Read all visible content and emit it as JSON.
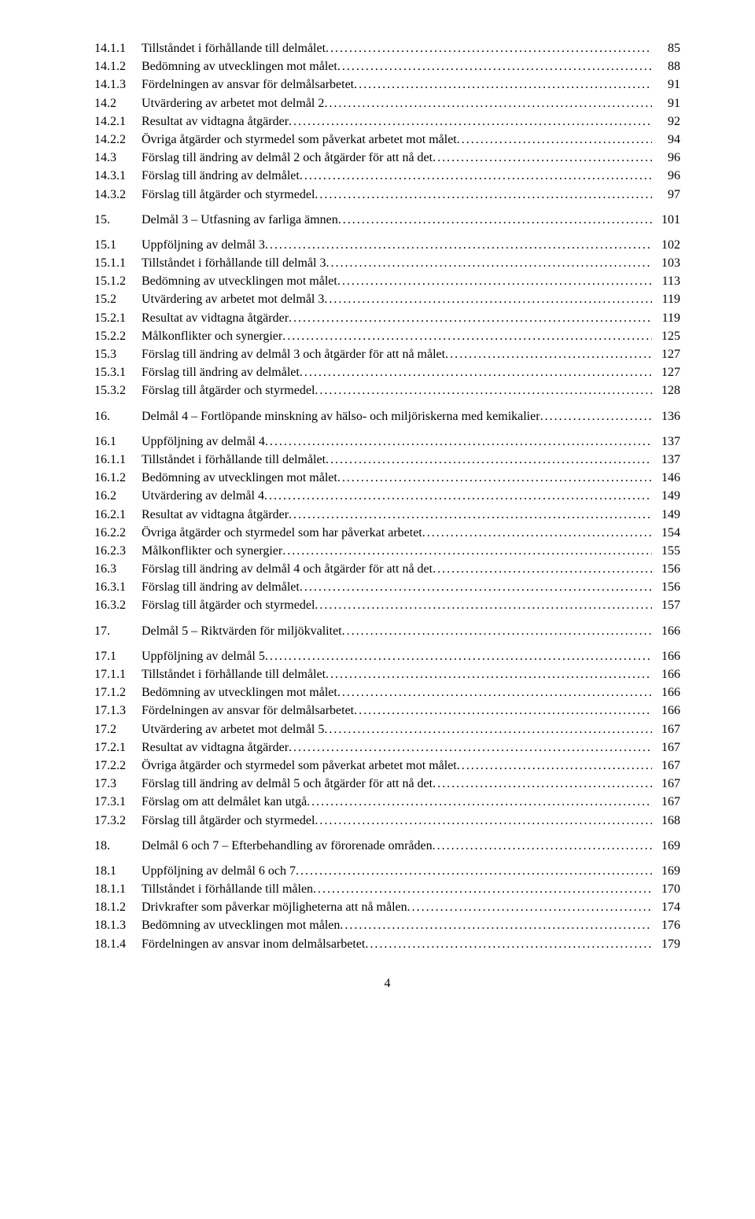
{
  "entries": [
    {
      "num": "14.1.1",
      "label": "Tillståndet i förhållande till delmålet",
      "page": "85",
      "indent": 0
    },
    {
      "num": "14.1.2",
      "label": "Bedömning av utvecklingen mot målet",
      "page": "88",
      "indent": 0
    },
    {
      "num": "14.1.3",
      "label": "Fördelningen av ansvar för delmålsarbetet",
      "page": "91",
      "indent": 0
    },
    {
      "num": "14.2",
      "label": "Utvärdering av arbetet mot delmål 2",
      "page": "91",
      "indent": 0
    },
    {
      "num": "14.2.1",
      "label": "Resultat av vidtagna åtgärder",
      "page": "92",
      "indent": 0
    },
    {
      "num": "14.2.2",
      "label": "Övriga åtgärder och styrmedel som påverkat arbetet mot målet",
      "page": "94",
      "indent": 0
    },
    {
      "num": "14.3",
      "label": "Förslag till ändring av delmål 2 och åtgärder för att nå det",
      "page": "96",
      "indent": 0
    },
    {
      "num": "14.3.1",
      "label": "Förslag till ändring av delmålet",
      "page": "96",
      "indent": 0
    },
    {
      "num": "14.3.2",
      "label": "Förslag till åtgärder och styrmedel",
      "page": "97",
      "indent": 0
    },
    {
      "gap": true
    },
    {
      "num": "15.",
      "label": "Delmål 3 – Utfasning av farliga ämnen",
      "page": "101",
      "indent": 0
    },
    {
      "gap": true
    },
    {
      "num": "15.1",
      "label": "Uppföljning av delmål 3",
      "page": "102",
      "indent": 0
    },
    {
      "num": "15.1.1",
      "label": "Tillståndet i förhållande till delmål 3",
      "page": "103",
      "indent": 0
    },
    {
      "num": "15.1.2",
      "label": "Bedömning av utvecklingen mot målet",
      "page": "113",
      "indent": 0
    },
    {
      "num": "15.2",
      "label": "Utvärdering av arbetet mot delmål 3",
      "page": "119",
      "indent": 0
    },
    {
      "num": "15.2.1",
      "label": "Resultat av vidtagna åtgärder",
      "page": "119",
      "indent": 0
    },
    {
      "num": "15.2.2",
      "label": "Målkonflikter och synergier",
      "page": "125",
      "indent": 0
    },
    {
      "num": "15.3",
      "label": "Förslag till ändring av delmål 3 och åtgärder för att nå målet",
      "page": "127",
      "indent": 0
    },
    {
      "num": "15.3.1",
      "label": "Förslag till ändring av delmålet",
      "page": "127",
      "indent": 0
    },
    {
      "num": "15.3.2",
      "label": "Förslag till åtgärder och styrmedel",
      "page": "128",
      "indent": 0
    },
    {
      "gap": true
    },
    {
      "num": "16.",
      "label": "Delmål 4 – Fortlöpande minskning av hälso- och miljöriskerna med kemikalier",
      "page": "136",
      "indent": 0
    },
    {
      "gap": true
    },
    {
      "num": "16.1",
      "label": "Uppföljning av delmål 4",
      "page": "137",
      "indent": 0
    },
    {
      "num": "16.1.1",
      "label": "Tillståndet i förhållande till delmålet",
      "page": "137",
      "indent": 0
    },
    {
      "num": "16.1.2",
      "label": "Bedömning av utvecklingen mot målet",
      "page": "146",
      "indent": 0
    },
    {
      "num": "16.2",
      "label": "Utvärdering av delmål 4",
      "page": "149",
      "indent": 0
    },
    {
      "num": "16.2.1",
      "label": "Resultat av vidtagna åtgärder",
      "page": "149",
      "indent": 0
    },
    {
      "num": "16.2.2",
      "label": "Övriga åtgärder och styrmedel som har påverkat arbetet",
      "page": "154",
      "indent": 0
    },
    {
      "num": "16.2.3",
      "label": "Målkonflikter och synergier",
      "page": "155",
      "indent": 0
    },
    {
      "num": "16.3",
      "label": "Förslag till ändring av delmål 4 och åtgärder för att nå det",
      "page": "156",
      "indent": 0
    },
    {
      "num": "16.3.1",
      "label": "Förslag till ändring av delmålet",
      "page": "156",
      "indent": 0
    },
    {
      "num": "16.3.2",
      "label": "Förslag till åtgärder och styrmedel",
      "page": "157",
      "indent": 0
    },
    {
      "gap": true
    },
    {
      "num": "17.",
      "label": "Delmål 5 – Riktvärden för miljökvalitet",
      "page": "166",
      "indent": 0
    },
    {
      "gap": true
    },
    {
      "num": "17.1",
      "label": "Uppföljning av delmål 5",
      "page": "166",
      "indent": 0
    },
    {
      "num": "17.1.1",
      "label": "Tillståndet i förhållande till delmålet",
      "page": "166",
      "indent": 0
    },
    {
      "num": "17.1.2",
      "label": "Bedömning av utvecklingen mot målet",
      "page": "166",
      "indent": 0
    },
    {
      "num": "17.1.3",
      "label": "Fördelningen av ansvar för delmålsarbetet",
      "page": "166",
      "indent": 0
    },
    {
      "num": "17.2",
      "label": "Utvärdering av arbetet mot delmål 5",
      "page": "167",
      "indent": 0
    },
    {
      "num": "17.2.1",
      "label": "Resultat av vidtagna åtgärder",
      "page": "167",
      "indent": 0
    },
    {
      "num": "17.2.2",
      "label": "Övriga åtgärder och styrmedel som påverkat arbetet mot målet",
      "page": "167",
      "indent": 0
    },
    {
      "num": "17.3",
      "label": "Förslag till ändring av delmål 5 och åtgärder för att nå det",
      "page": "167",
      "indent": 0
    },
    {
      "num": "17.3.1",
      "label": "Förslag om att delmålet kan utgå",
      "page": "167",
      "indent": 0
    },
    {
      "num": "17.3.2",
      "label": "Förslag till åtgärder och styrmedel",
      "page": "168",
      "indent": 0
    },
    {
      "gap": true
    },
    {
      "num": "18.",
      "label": "Delmål 6 och 7 – Efterbehandling av förorenade områden",
      "page": "169",
      "indent": 0
    },
    {
      "gap": true
    },
    {
      "num": "18.1",
      "label": "Uppföljning av delmål 6 och 7",
      "page": "169",
      "indent": 0
    },
    {
      "num": "18.1.1",
      "label": "Tillståndet i förhållande till målen",
      "page": "170",
      "indent": 0
    },
    {
      "num": "18.1.2",
      "label": "Drivkrafter som påverkar möjligheterna att nå målen",
      "page": "174",
      "indent": 0
    },
    {
      "num": "18.1.3",
      "label": "Bedömning av utvecklingen mot målen",
      "page": "176",
      "indent": 0
    },
    {
      "num": "18.1.4",
      "label": "Fördelningen av ansvar inom delmålsarbetet",
      "page": "179",
      "indent": 0
    }
  ],
  "pageNumber": "4"
}
